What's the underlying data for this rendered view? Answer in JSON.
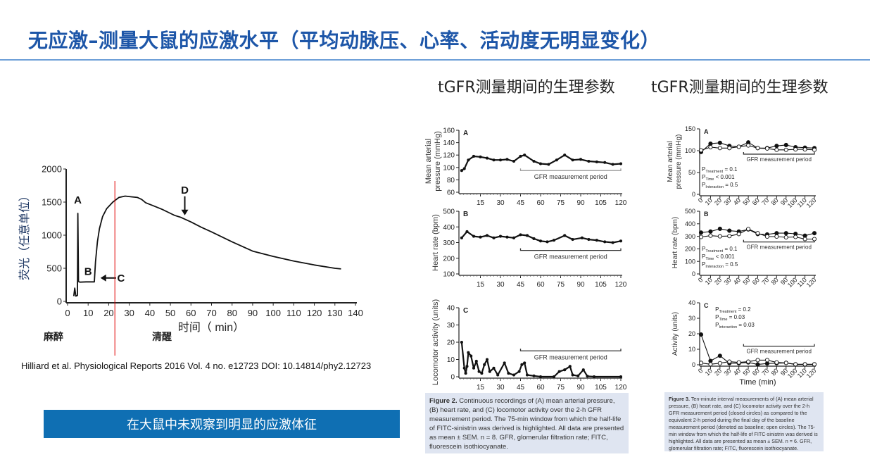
{
  "slide": {
    "title": "无应激–测量大鼠的应激水平（平均动脉压、心率、活动度无明显变化）",
    "header_middle": "tGFR测量期间的生理参数",
    "header_right": "tGFR测量期间的生理参数",
    "label_anesthesia": "麻醉",
    "label_awake": "清醒",
    "citation": "Hilliard et al. Physiological Reports 2016 Vol. 4 no. e12723 DOI: 10.14814/phy2.12723",
    "banner": "在大鼠中未观察到明显的应激体征",
    "figure2_caption_bold": "Figure 2.",
    "figure2_caption": "Continuous recordings of (A) mean arterial pressure, (B) heart rate, and (C) locomotor activity over the 2-h GFR measurement period. The 75-min window from which the half-life of FITC-sinistrin was derived is highlighted. All data are presented as mean ± SEM. n = 8. GFR, glomerular filtration rate; FITC, fluorescein isothiocyanate.",
    "figure3_caption_bold": "Figure 3.",
    "figure3_caption": "Ten-minute interval measurements of (A) mean arterial pressure, (B) heart rate, and (C) locomotor activity over the 2-h GFR measurement period (closed circles) as compared to the equivalent 2-h period during the final day of the baseline measurement period (denoted as baseline; open circles). The 75-min window from which the half-life of FITC-sinistrin was derived is highlighted. All data are presented as mean ± SEM. n = 6. GFR, glomerular filtration rate; FITC, fluorescein isothiocyanate.",
    "colors": {
      "title": "#1d56a8",
      "banner": "#0f6fb3",
      "marker_line": "#e00000"
    }
  },
  "chart_data": [
    {
      "type": "line",
      "id": "fluorescence",
      "xlabel": "时间（ min）",
      "ylabel": [
        "荧光（任意单位）"
      ],
      "xlim": [
        0,
        140
      ],
      "ylim": [
        0,
        2000
      ],
      "xticks": [
        "0",
        "10",
        "20",
        "30",
        "40",
        "50",
        "60",
        "70",
        "80",
        "90",
        "100",
        "110",
        "120",
        "130",
        "140"
      ],
      "yticks": [
        "0",
        "500",
        "1000",
        "1500",
        "2000"
      ],
      "series": [
        {
          "name": "FITC-sinistrin fluorescence",
          "style": "line",
          "x": [
            3,
            3.5,
            4,
            4.8,
            5,
            5.3,
            6,
            9,
            13,
            13.6,
            14.5,
            15.5,
            17,
            19,
            22,
            25,
            28,
            31,
            34,
            36,
            38,
            42,
            46,
            50,
            52,
            55,
            60,
            65,
            70,
            80,
            90,
            100,
            110,
            120,
            130,
            133
          ],
          "y": [
            80,
            200,
            80,
            90,
            1330,
            300,
            290,
            295,
            295,
            600,
            900,
            1100,
            1280,
            1400,
            1500,
            1570,
            1590,
            1580,
            1570,
            1540,
            1490,
            1440,
            1390,
            1330,
            1300,
            1270,
            1200,
            1120,
            1050,
            900,
            760,
            680,
            610,
            550,
            500,
            490
          ]
        }
      ],
      "annotations": [
        {
          "label": "A",
          "x": 5,
          "y": 1480
        },
        {
          "label": "B",
          "x": 10,
          "y": 400
        },
        {
          "label": "C",
          "x": 26,
          "y": 300,
          "arrow_to": 16
        },
        {
          "label": "D",
          "x": 57,
          "y": 1630,
          "arrow_down_to": 1300
        }
      ],
      "vline_x": 23
    },
    {
      "type": "line",
      "id": "fig2A",
      "panel": "A",
      "ylabel": [
        "Mean arterial",
        "pressure (mmHg)"
      ],
      "xlim": [
        0,
        120
      ],
      "ylim": [
        60,
        160
      ],
      "xticks": [
        "15",
        "30",
        "45",
        "60",
        "75",
        "90",
        "105",
        "120"
      ],
      "yticks": [
        "60",
        "80",
        "100",
        "120",
        "140",
        "160"
      ],
      "series": [
        {
          "name": "MAP",
          "style": "filled-small",
          "x": [
            1,
            3,
            6,
            10,
            15,
            20,
            25,
            30,
            35,
            40,
            45,
            48,
            55,
            60,
            66,
            72,
            78,
            84,
            90,
            96,
            102,
            108,
            114,
            120
          ],
          "y": [
            95,
            98,
            112,
            118,
            117,
            115,
            112,
            112,
            113,
            110,
            118,
            120,
            110,
            106,
            105,
            112,
            120,
            112,
            113,
            110,
            109,
            108,
            105,
            106
          ]
        }
      ],
      "bracket": {
        "from": 45,
        "to": 120,
        "y": 95,
        "label": "GFR measurement period"
      }
    },
    {
      "type": "line",
      "id": "fig2B",
      "panel": "B",
      "ylabel": [
        "Heart rate (bpm)"
      ],
      "xlim": [
        0,
        120
      ],
      "ylim": [
        100,
        500
      ],
      "xticks": [
        "15",
        "30",
        "45",
        "60",
        "75",
        "90",
        "105",
        "120"
      ],
      "yticks": [
        "100",
        "200",
        "300",
        "400",
        "500"
      ],
      "series": [
        {
          "name": "Heart rate",
          "style": "filled-small",
          "x": [
            1,
            5,
            10,
            15,
            20,
            25,
            30,
            35,
            40,
            45,
            50,
            55,
            60,
            65,
            70,
            78,
            84,
            91,
            96,
            102,
            108,
            114,
            120
          ],
          "y": [
            330,
            370,
            340,
            335,
            345,
            330,
            340,
            335,
            330,
            350,
            345,
            325,
            310,
            305,
            315,
            345,
            320,
            330,
            320,
            315,
            305,
            300,
            310
          ]
        }
      ],
      "bracket": {
        "from": 45,
        "to": 120,
        "y": 250,
        "label": "GFR measurement period"
      }
    },
    {
      "type": "line",
      "id": "fig2C",
      "panel": "C",
      "ylabel": [
        "Locomotor activity (units)"
      ],
      "xlim": [
        0,
        120
      ],
      "ylim": [
        0,
        40
      ],
      "xticks": [
        "15",
        "30",
        "45",
        "60",
        "75",
        "90",
        "105",
        "120"
      ],
      "yticks": [
        "0",
        "10",
        "20",
        "30",
        "40"
      ],
      "series": [
        {
          "name": "Locomotor activity",
          "style": "filled-small",
          "x": [
            1,
            3,
            4,
            5,
            6,
            8,
            10,
            12,
            14,
            16,
            18,
            20,
            22,
            25,
            28,
            33,
            36,
            40,
            44,
            46,
            48,
            50,
            55,
            60,
            70,
            74,
            78,
            82,
            84,
            88,
            92,
            95,
            100,
            120
          ],
          "y": [
            20,
            5,
            2,
            6,
            14,
            12,
            5,
            9,
            3,
            2,
            7,
            10,
            3,
            5,
            1,
            8,
            2,
            1,
            3,
            7,
            8,
            1,
            0.5,
            0,
            0,
            3,
            4,
            6,
            1,
            0.5,
            4,
            0.3,
            0,
            0
          ]
        }
      ],
      "bracket": {
        "from": 45,
        "to": 120,
        "y": 15,
        "label": "GFR measurement period"
      }
    },
    {
      "type": "line",
      "id": "fig3A",
      "panel": "A",
      "ylabel": [
        "Mean arterial",
        "pressure (mmHg)"
      ],
      "xlim": [
        0,
        120
      ],
      "ylim": [
        0,
        150
      ],
      "rotate_xticks": true,
      "xticks": [
        "0",
        "10",
        "20",
        "30",
        "40",
        "50",
        "60",
        "70",
        "80",
        "90",
        "100",
        "110",
        "120"
      ],
      "yticks": [
        "0",
        "50",
        "100",
        "150"
      ],
      "series": [
        {
          "name": "GFR measurement period",
          "style": "closed",
          "x": [
            0,
            10,
            20,
            30,
            40,
            50,
            60,
            70,
            80,
            90,
            100,
            110,
            120
          ],
          "y": [
            97,
            116,
            118,
            111,
            109,
            119,
            106,
            106,
            111,
            113,
            108,
            107,
            106
          ]
        },
        {
          "name": "Baseline",
          "style": "open",
          "x": [
            0,
            10,
            20,
            30,
            40,
            50,
            60,
            70,
            80,
            90,
            100,
            110,
            120
          ],
          "y": [
            101,
            108,
            106,
            106,
            109,
            112,
            106,
            105,
            102,
            102,
            103,
            103,
            102
          ]
        }
      ],
      "bracket": {
        "from": 45,
        "to": 120,
        "y": 92,
        "label": "GFR measurement period"
      },
      "pvalues": [
        {
          "p": "P",
          "sub": "Treatment",
          "val": " = 0.1"
        },
        {
          "p": "P",
          "sub": "Time",
          "val": " < 0.001"
        },
        {
          "p": "P",
          "sub": "Interaction",
          "val": " = 0.5"
        }
      ]
    },
    {
      "type": "line",
      "id": "fig3B",
      "panel": "B",
      "ylabel": [
        "Heart rate (bpm)"
      ],
      "xlim": [
        0,
        120
      ],
      "ylim": [
        0,
        500
      ],
      "rotate_xticks": true,
      "xticks": [
        "0",
        "10",
        "20",
        "30",
        "40",
        "50",
        "60",
        "70",
        "80",
        "90",
        "100",
        "110",
        "120"
      ],
      "yticks": [
        "0",
        "100",
        "200",
        "300",
        "400",
        "500"
      ],
      "series": [
        {
          "name": "GFR measurement period",
          "style": "closed",
          "x": [
            0,
            10,
            20,
            30,
            40,
            50,
            60,
            70,
            80,
            90,
            100,
            110,
            120
          ],
          "y": [
            330,
            338,
            360,
            345,
            338,
            355,
            318,
            315,
            325,
            325,
            320,
            305,
            325
          ]
        },
        {
          "name": "Baseline",
          "style": "open",
          "x": [
            0,
            10,
            20,
            30,
            40,
            50,
            60,
            70,
            80,
            90,
            100,
            110,
            120
          ],
          "y": [
            295,
            305,
            300,
            302,
            318,
            358,
            325,
            298,
            298,
            292,
            295,
            278,
            278
          ]
        }
      ],
      "bracket": {
        "from": 45,
        "to": 120,
        "y": 255,
        "label": "GFR measurement period"
      },
      "pvalues": [
        {
          "p": "P",
          "sub": "Treatment",
          "val": " = 0.1"
        },
        {
          "p": "P",
          "sub": "Time",
          "val": " < 0.001"
        },
        {
          "p": "P",
          "sub": "Interaction",
          "val": " = 0.5"
        }
      ]
    },
    {
      "type": "line",
      "id": "fig3C",
      "panel": "C",
      "ylabel": [
        "Activity (units)"
      ],
      "xlabel": "Time (min)",
      "xlim": [
        0,
        120
      ],
      "ylim": [
        0,
        40
      ],
      "rotate_xticks": true,
      "xticks": [
        "0",
        "10",
        "20",
        "30",
        "40",
        "50",
        "60",
        "70",
        "80",
        "90",
        "100",
        "110",
        "120"
      ],
      "yticks": [
        "0",
        "10",
        "20",
        "30",
        "40"
      ],
      "series": [
        {
          "name": "GFR measurement period",
          "style": "closed",
          "x": [
            0,
            10,
            20,
            30,
            40,
            50,
            60,
            70,
            80,
            90,
            100,
            110,
            120
          ],
          "y": [
            19.5,
            2.5,
            5.8,
            1.0,
            1.0,
            1.5,
            0.2,
            0.8,
            1.0,
            1.2,
            0.2,
            0.2,
            0.2
          ]
        },
        {
          "name": "Baseline",
          "style": "open",
          "x": [
            0,
            10,
            20,
            30,
            40,
            50,
            60,
            70,
            80,
            90,
            100,
            110,
            120
          ],
          "y": [
            1.2,
            0.3,
            1.0,
            2.0,
            1.5,
            2.0,
            3.0,
            3.0,
            1.5,
            1.2,
            0.3,
            0.3,
            0.3
          ]
        }
      ],
      "bracket": {
        "from": 45,
        "to": 120,
        "y": 12,
        "label": "GFR measurement period"
      },
      "pvalues": [
        {
          "p": "P",
          "sub": "Treatment",
          "val": " = 0.2"
        },
        {
          "p": "P",
          "sub": "Time",
          "val": " = 0.03"
        },
        {
          "p": "P",
          "sub": "Interaction",
          "val": " = 0.03"
        }
      ]
    }
  ]
}
